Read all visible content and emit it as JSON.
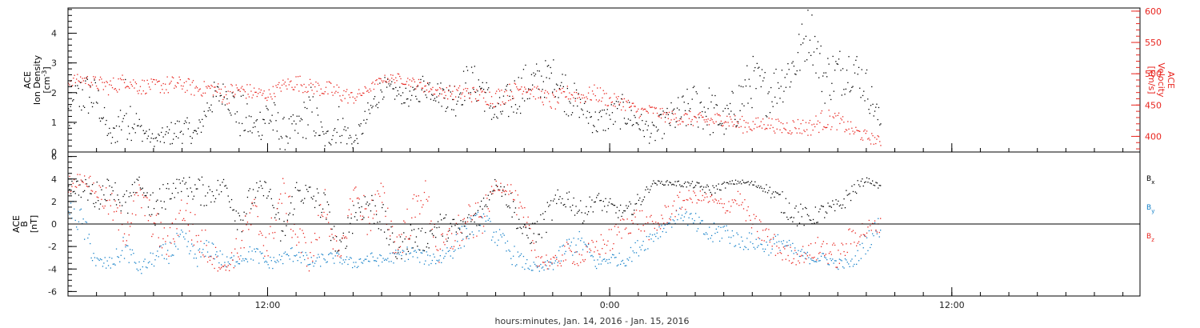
{
  "colors": {
    "black": "#000000",
    "red": "#e8251f",
    "blue": "#1480c8",
    "frame": "#000000"
  },
  "chart_data": [
    {
      "type": "scatter",
      "panel": "top",
      "xlabel": "hours:minutes, Jan. 14, 2016 - Jan. 15, 2016",
      "x_unit": "hours since 2016-01-14 00:00",
      "xlim": [
        5,
        42.6
      ],
      "x_ticks": [
        {
          "value": 12,
          "label": "12:00"
        },
        {
          "value": 24,
          "label": "0:00"
        },
        {
          "value": 36,
          "label": "12:00"
        }
      ],
      "left_axis": {
        "label_lines": [
          "ACE",
          "Ion Density"
        ],
        "unit_prefix": "[cm",
        "unit_sup": "-3",
        "unit_suffix": "]",
        "ylim": [
          0,
          4.85
        ],
        "ticks": [
          {
            "value": 0,
            "label": "0"
          },
          {
            "value": 1,
            "label": "1"
          },
          {
            "value": 2,
            "label": "2"
          },
          {
            "value": 3,
            "label": "3"
          },
          {
            "value": 4,
            "label": "4"
          }
        ]
      },
      "right_axis": {
        "label_lines": [
          "ACE",
          "Velocity",
          "[km/s]"
        ],
        "ylim": [
          375,
          605
        ],
        "ticks": [
          {
            "value": 400,
            "label": "400"
          },
          {
            "value": 450,
            "label": "450"
          },
          {
            "value": 500,
            "label": "500"
          },
          {
            "value": 550,
            "label": "550"
          },
          {
            "value": 600,
            "label": "600"
          }
        ]
      },
      "series": [
        {
          "axis": "left",
          "color": "black",
          "x": [
            5.0,
            5.5,
            6.0,
            6.5,
            7.0,
            7.5,
            8.0,
            8.5,
            9.0,
            9.5,
            10.0,
            10.5,
            11.0,
            11.5,
            12.0,
            12.5,
            13.0,
            13.5,
            14.0,
            14.5,
            15.0,
            15.5,
            16.0,
            16.5,
            17.0,
            17.5,
            18.0,
            18.5,
            19.0,
            19.5,
            20.0,
            20.5,
            21.0,
            21.5,
            22.0,
            22.5,
            23.0,
            23.5,
            24.0,
            24.5,
            25.0,
            25.5,
            26.0,
            26.5,
            27.0,
            27.5,
            28.0,
            28.5,
            29.0,
            29.5,
            30.0,
            30.5,
            31.0,
            31.5,
            32.0,
            32.5,
            33.0,
            33.5
          ],
          "values": [
            1.2,
            2.0,
            1.8,
            0.4,
            1.5,
            0.8,
            0.4,
            0.6,
            0.8,
            0.6,
            1.8,
            2.0,
            1.3,
            0.8,
            1.3,
            0.6,
            0.8,
            1.4,
            0.4,
            1.0,
            0.3,
            1.2,
            2.2,
            2.0,
            1.8,
            2.3,
            2.0,
            1.8,
            2.4,
            2.2,
            1.2,
            1.8,
            2.2,
            2.4,
            2.6,
            2.0,
            1.5,
            1.0,
            1.2,
            1.4,
            1.0,
            0.6,
            1.1,
            1.3,
            1.6,
            1.4,
            1.0,
            1.7,
            2.4,
            2.0,
            2.4,
            3.0,
            4.2,
            2.5,
            2.7,
            2.9,
            2.2,
            0.9
          ],
          "scatter": [
            0.9,
            0.8,
            0.7,
            0.25,
            1.1,
            0.4,
            0.2,
            0.4,
            0.5,
            0.3,
            0.6,
            0.4,
            0.9,
            0.4,
            0.9,
            0.6,
            0.5,
            0.9,
            0.3,
            0.7,
            0.2,
            0.5,
            0.4,
            0.3,
            0.3,
            0.5,
            0.4,
            0.7,
            0.6,
            0.7,
            0.5,
            0.7,
            0.8,
            0.7,
            0.6,
            0.8,
            0.4,
            0.5,
            0.5,
            0.6,
            0.4,
            0.4,
            0.5,
            0.7,
            0.8,
            0.9,
            0.5,
            0.9,
            0.9,
            0.8,
            0.8,
            0.9,
            0.9,
            0.9,
            0.9,
            0.8,
            0.7,
            0.4
          ]
        },
        {
          "axis": "right",
          "color": "red",
          "x": [
            5.0,
            5.5,
            6.0,
            6.5,
            7.0,
            7.5,
            8.0,
            8.5,
            9.0,
            9.5,
            10.0,
            10.5,
            11.0,
            11.5,
            12.0,
            12.5,
            13.0,
            13.5,
            14.0,
            14.5,
            15.0,
            15.5,
            16.0,
            16.5,
            17.0,
            17.5,
            18.0,
            18.5,
            19.0,
            19.5,
            20.0,
            20.5,
            21.0,
            21.5,
            22.0,
            22.5,
            23.0,
            23.5,
            24.0,
            24.5,
            25.0,
            25.5,
            26.0,
            26.5,
            27.0,
            27.5,
            28.0,
            28.5,
            29.0,
            29.5,
            30.0,
            30.5,
            31.0,
            31.5,
            32.0,
            32.5,
            33.0,
            33.5
          ],
          "values": [
            490,
            492,
            485,
            480,
            490,
            480,
            482,
            482,
            484,
            476,
            478,
            468,
            475,
            470,
            466,
            482,
            487,
            480,
            476,
            470,
            462,
            475,
            492,
            494,
            488,
            480,
            472,
            470,
            470,
            465,
            462,
            472,
            480,
            468,
            455,
            470,
            464,
            470,
            458,
            454,
            440,
            442,
            432,
            430,
            428,
            425,
            430,
            420,
            418,
            422,
            415,
            417,
            415,
            428,
            425,
            410,
            400,
            392
          ],
          "scatter": [
            10,
            8,
            12,
            15,
            12,
            14,
            10,
            16,
            12,
            14,
            10,
            18,
            12,
            14,
            10,
            10,
            14,
            12,
            14,
            16,
            10,
            8,
            6,
            8,
            8,
            10,
            8,
            12,
            14,
            12,
            16,
            14,
            10,
            12,
            16,
            12,
            12,
            14,
            12,
            12,
            10,
            10,
            10,
            12,
            12,
            12,
            12,
            14,
            12,
            12,
            12,
            14,
            14,
            18,
            14,
            12,
            10,
            8
          ]
        }
      ]
    },
    {
      "type": "scatter",
      "panel": "bottom",
      "xlim": [
        5,
        42.6
      ],
      "left_axis": {
        "label_lines": [
          "ACE",
          "B",
          "[nT]"
        ],
        "ylim": [
          -6.4,
          6.4
        ],
        "ticks": [
          {
            "value": -6,
            "label": "-6"
          },
          {
            "value": -4,
            "label": "-4"
          },
          {
            "value": -2,
            "label": "-2"
          },
          {
            "value": 0,
            "label": "0"
          },
          {
            "value": 2,
            "label": "2"
          },
          {
            "value": 4,
            "label": "4"
          },
          {
            "value": 6,
            "label": "6"
          }
        ],
        "zero_line": true
      },
      "series": [
        {
          "name_base": "B",
          "name_sub": "x",
          "color": "black",
          "x": [
            5.0,
            5.5,
            6.0,
            6.5,
            7.0,
            7.5,
            8.0,
            8.5,
            9.0,
            9.5,
            10.0,
            10.5,
            11.0,
            11.5,
            12.0,
            12.5,
            13.0,
            13.5,
            14.0,
            14.5,
            15.0,
            15.5,
            16.0,
            16.5,
            17.0,
            17.5,
            18.0,
            18.5,
            19.0,
            19.5,
            20.0,
            20.5,
            21.0,
            21.5,
            22.0,
            22.5,
            23.0,
            23.5,
            24.0,
            24.5,
            25.0,
            25.5,
            26.0,
            26.5,
            27.0,
            27.5,
            28.0,
            28.5,
            29.0,
            29.5,
            30.0,
            30.5,
            31.0,
            31.5,
            32.0,
            32.5,
            33.0,
            33.5
          ],
          "values": [
            3.5,
            3.2,
            2.5,
            3.5,
            1.5,
            3.8,
            1.0,
            3.0,
            3.6,
            3.0,
            2.8,
            3.5,
            0.5,
            2.6,
            3.2,
            -1.2,
            3.0,
            2.5,
            1.5,
            -2.5,
            1.0,
            2.0,
            0.5,
            -2.5,
            -1.0,
            -1.5,
            0.0,
            -0.5,
            -0.3,
            1.5,
            3.8,
            2.0,
            -1.0,
            -0.5,
            1.5,
            2.5,
            1.0,
            2.2,
            1.5,
            1.0,
            2.0,
            3.7,
            3.7,
            3.6,
            3.5,
            3.0,
            3.5,
            3.8,
            3.6,
            3.2,
            2.0,
            1.0,
            0.5,
            1.2,
            1.5,
            3.0,
            4.0,
            3.3
          ],
          "scatter": [
            0.8,
            0.9,
            1.4,
            0.8,
            1.6,
            0.5,
            1.8,
            1.2,
            0.6,
            1.4,
            1.2,
            0.8,
            1.6,
            1.2,
            0.8,
            1.4,
            1.2,
            1.2,
            1.6,
            1.0,
            1.6,
            1.4,
            1.6,
            1.0,
            1.4,
            1.0,
            1.2,
            1.2,
            1.4,
            1.2,
            0.4,
            1.2,
            1.0,
            1.2,
            1.4,
            1.0,
            1.0,
            0.8,
            0.8,
            0.6,
            0.8,
            0.2,
            0.2,
            0.3,
            0.3,
            0.5,
            0.3,
            0.2,
            0.3,
            0.4,
            1.0,
            1.2,
            0.8,
            0.8,
            0.8,
            0.8,
            0.2,
            0.2
          ]
        },
        {
          "name_base": "B",
          "name_sub": "y",
          "color": "blue",
          "x": [
            5.0,
            5.5,
            6.0,
            6.5,
            7.0,
            7.5,
            8.0,
            8.5,
            9.0,
            9.5,
            10.0,
            10.5,
            11.0,
            11.5,
            12.0,
            12.5,
            13.0,
            13.5,
            14.0,
            14.5,
            15.0,
            15.5,
            16.0,
            16.5,
            17.0,
            17.5,
            18.0,
            18.5,
            19.0,
            19.5,
            20.0,
            20.5,
            21.0,
            21.5,
            22.0,
            22.5,
            23.0,
            23.5,
            24.0,
            24.5,
            25.0,
            25.5,
            26.0,
            26.5,
            27.0,
            27.5,
            28.0,
            28.5,
            29.0,
            29.5,
            30.0,
            30.5,
            31.0,
            31.5,
            32.0,
            32.5,
            33.0,
            33.5
          ],
          "values": [
            1.5,
            0.0,
            -3.5,
            -3.5,
            -2.0,
            -4.0,
            -3.0,
            -2.5,
            -1.5,
            -3.0,
            -2.0,
            -3.5,
            -3.0,
            -2.5,
            -3.5,
            -3.0,
            -2.5,
            -3.5,
            -3.0,
            -3.0,
            -3.5,
            -3.0,
            -3.2,
            -2.8,
            -2.5,
            -3.0,
            -3.0,
            -2.0,
            -0.5,
            0.5,
            -1.0,
            -2.5,
            -3.5,
            -4.0,
            -3.5,
            -2.0,
            -1.5,
            -3.5,
            -3.0,
            -3.2,
            -2.0,
            -1.0,
            0.0,
            1.0,
            0.0,
            -1.0,
            -0.5,
            -1.5,
            -1.5,
            -2.0,
            -1.5,
            -2.5,
            -3.0,
            -3.0,
            -3.5,
            -3.5,
            -1.5,
            0.0
          ],
          "scatter": [
            1.0,
            1.4,
            0.8,
            0.6,
            1.2,
            0.6,
            0.8,
            1.0,
            1.2,
            0.8,
            1.0,
            0.6,
            0.6,
            0.8,
            0.6,
            0.6,
            0.8,
            0.6,
            0.6,
            0.5,
            0.5,
            0.6,
            0.5,
            0.6,
            0.7,
            0.6,
            0.8,
            1.0,
            1.2,
            0.8,
            1.0,
            1.0,
            0.6,
            0.4,
            0.6,
            1.0,
            1.0,
            0.6,
            0.6,
            0.6,
            0.8,
            0.8,
            0.6,
            0.6,
            1.0,
            1.0,
            1.0,
            0.8,
            0.8,
            0.8,
            0.8,
            0.6,
            0.5,
            0.5,
            0.5,
            0.5,
            1.0,
            1.0
          ]
        },
        {
          "name_base": "B",
          "name_sub": "z",
          "color": "red",
          "x": [
            5.0,
            5.5,
            6.0,
            6.5,
            7.0,
            7.5,
            8.0,
            8.5,
            9.0,
            9.5,
            10.0,
            10.5,
            11.0,
            11.5,
            12.0,
            12.5,
            13.0,
            13.5,
            14.0,
            14.5,
            15.0,
            15.5,
            16.0,
            16.5,
            17.0,
            17.5,
            18.0,
            18.5,
            19.0,
            19.5,
            20.0,
            20.5,
            21.0,
            21.5,
            22.0,
            22.5,
            23.0,
            23.5,
            24.0,
            24.5,
            25.0,
            25.5,
            26.0,
            26.5,
            27.0,
            27.5,
            28.0,
            28.5,
            29.0,
            29.5,
            30.0,
            30.5,
            31.0,
            31.5,
            32.0,
            32.5,
            33.0,
            33.5
          ],
          "values": [
            3.5,
            4.2,
            3.0,
            1.5,
            -0.5,
            2.5,
            0.0,
            -2.0,
            1.5,
            -1.0,
            -2.5,
            -4.0,
            -2.0,
            1.0,
            -2.0,
            3.0,
            -1.0,
            -3.0,
            2.0,
            -3.5,
            3.0,
            0.5,
            2.5,
            -2.0,
            0.5,
            3.0,
            -2.5,
            -1.0,
            0.0,
            0.5,
            3.5,
            3.2,
            0.0,
            -3.0,
            -3.5,
            -2.5,
            -3.0,
            -2.0,
            -1.5,
            0.0,
            0.5,
            -0.5,
            1.0,
            2.0,
            2.5,
            2.2,
            1.5,
            2.4,
            0.0,
            -1.0,
            -2.5,
            -2.8,
            -2.5,
            -2.0,
            -3.0,
            -1.0,
            -0.5,
            0.0
          ],
          "scatter": [
            1.0,
            0.4,
            1.0,
            1.4,
            1.6,
            1.4,
            1.6,
            1.4,
            1.6,
            1.8,
            1.4,
            0.4,
            1.6,
            1.8,
            1.6,
            1.4,
            1.8,
            1.4,
            1.6,
            1.0,
            1.2,
            1.8,
            1.4,
            1.6,
            1.8,
            1.2,
            1.4,
            1.6,
            1.8,
            1.6,
            0.5,
            0.6,
            1.6,
            1.0,
            0.6,
            1.0,
            0.8,
            1.0,
            1.2,
            1.0,
            1.2,
            1.2,
            1.0,
            1.0,
            0.6,
            0.6,
            0.8,
            0.8,
            1.0,
            1.2,
            0.8,
            0.8,
            0.8,
            1.4,
            1.0,
            1.2,
            1.0,
            0.6
          ]
        }
      ]
    }
  ]
}
